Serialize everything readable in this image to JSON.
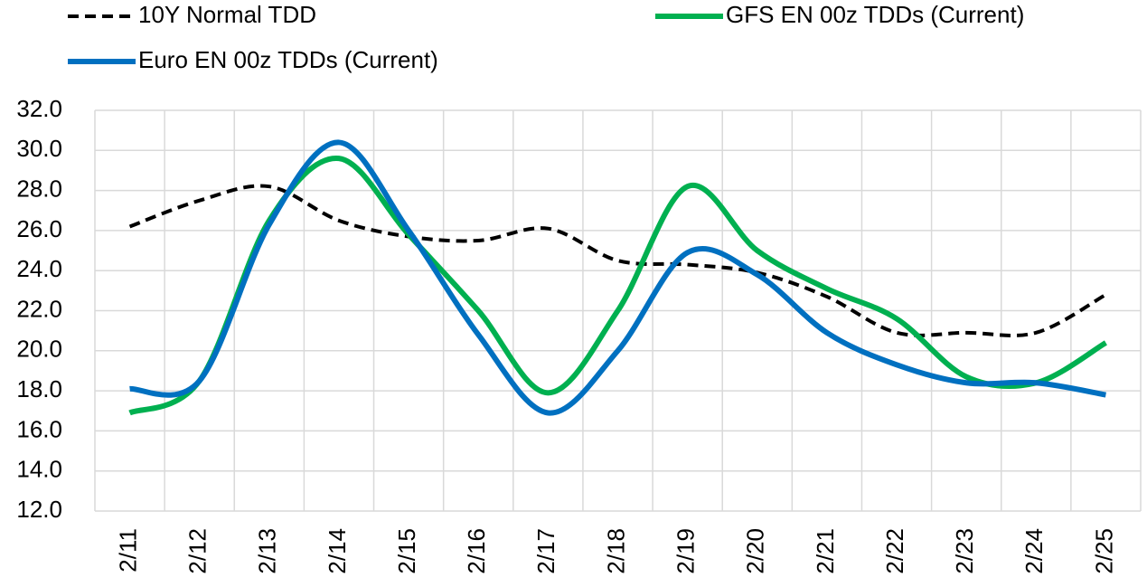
{
  "chart_data": {
    "type": "line",
    "categories": [
      "2/11",
      "2/12",
      "2/13",
      "2/14",
      "2/15",
      "2/16",
      "2/17",
      "2/18",
      "2/19",
      "2/20",
      "2/21",
      "2/22",
      "2/23",
      "2/24",
      "2/25"
    ],
    "series": [
      {
        "name": "10Y Normal TDD",
        "color": "#000000",
        "dash": true,
        "values": [
          26.2,
          27.5,
          28.2,
          26.5,
          25.7,
          25.5,
          26.1,
          24.5,
          24.3,
          23.9,
          22.7,
          20.9,
          20.9,
          20.9,
          22.8
        ]
      },
      {
        "name": "GFS EN 00z TDDs (Current)",
        "color": "#00b050",
        "dash": false,
        "values": [
          16.9,
          18.5,
          26.5,
          29.6,
          25.8,
          22.0,
          17.9,
          22.0,
          28.2,
          25.0,
          23.1,
          21.6,
          18.7,
          18.4,
          20.4
        ]
      },
      {
        "name": "Euro EN 00z TDDs (Current)",
        "color": "#0070c0",
        "dash": false,
        "values": [
          18.1,
          18.5,
          26.3,
          30.4,
          26.0,
          20.8,
          16.9,
          20.0,
          24.9,
          23.8,
          20.9,
          19.3,
          18.4,
          18.4,
          17.8
        ]
      }
    ],
    "ylim": [
      12,
      32
    ],
    "yticks": [
      {
        "value": 12,
        "label": "12.0"
      },
      {
        "value": 14,
        "label": "14.0"
      },
      {
        "value": 16,
        "label": "16.0"
      },
      {
        "value": 18,
        "label": "18.0"
      },
      {
        "value": 20,
        "label": "20.0"
      },
      {
        "value": 22,
        "label": "22.0"
      },
      {
        "value": 24,
        "label": "24.0"
      },
      {
        "value": 26,
        "label": "26.0"
      },
      {
        "value": 28,
        "label": "28.0"
      },
      {
        "value": 30,
        "label": "30.0"
      },
      {
        "value": 32,
        "label": "32.0"
      }
    ],
    "grid": true,
    "smooth": true
  }
}
